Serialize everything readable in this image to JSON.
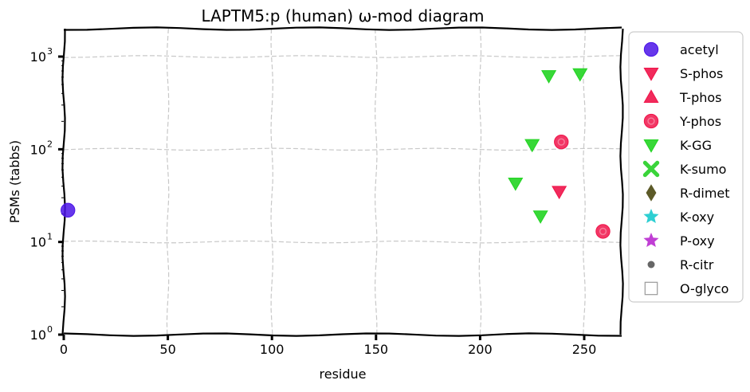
{
  "chart_data": {
    "type": "scatter",
    "title": "LAPTM5:p (human) ω-mod diagram",
    "xlabel": "residue",
    "ylabel": "PSMs (tabbs)",
    "xlim": [
      0,
      268
    ],
    "ylim": [
      1,
      2000
    ],
    "yscale": "log",
    "grid": true,
    "legend_position": "right outside",
    "x_ticks": [
      "0",
      "50",
      "100",
      "150",
      "200",
      "250"
    ],
    "x_tick_values": [
      0,
      50,
      100,
      150,
      200,
      250
    ],
    "y_ticks": [
      {
        "value": 1,
        "base": "10",
        "exp": "0"
      },
      {
        "value": 10,
        "base": "10",
        "exp": "1"
      },
      {
        "value": 100,
        "base": "10",
        "exp": "2"
      },
      {
        "value": 1000,
        "base": "10",
        "exp": "3"
      }
    ],
    "series": [
      {
        "name": "acetyl",
        "marker": "circle",
        "color": "#4b14e8",
        "points": [
          {
            "x": 2,
            "y": 22
          }
        ]
      },
      {
        "name": "S-phos",
        "marker": "triangle-down",
        "color": "#f0144a",
        "points": [
          {
            "x": 238,
            "y": 35
          }
        ]
      },
      {
        "name": "T-phos",
        "marker": "triangle-up",
        "color": "#f0144a",
        "points": []
      },
      {
        "name": "Y-phos",
        "marker": "circle-ring",
        "color": "#f0144a",
        "points": [
          {
            "x": 239,
            "y": 120
          },
          {
            "x": 259,
            "y": 13
          }
        ]
      },
      {
        "name": "K-GG",
        "marker": "triangle-down",
        "color": "#22d422",
        "points": [
          {
            "x": 217,
            "y": 43
          },
          {
            "x": 225,
            "y": 112
          },
          {
            "x": 229,
            "y": 19
          },
          {
            "x": 233,
            "y": 620
          },
          {
            "x": 248,
            "y": 650
          }
        ]
      },
      {
        "name": "K-sumo",
        "marker": "x-thick",
        "color": "#3ad43a",
        "points": []
      },
      {
        "name": "R-dimet",
        "marker": "diamond",
        "color": "#5c5a28",
        "points": []
      },
      {
        "name": "K-oxy",
        "marker": "star",
        "color": "#2ecfd2",
        "points": []
      },
      {
        "name": "P-oxy",
        "marker": "star",
        "color": "#c03ed4",
        "points": []
      },
      {
        "name": "R-citr",
        "marker": "small-circle",
        "color": "#666666",
        "points": []
      },
      {
        "name": "O-glyco",
        "marker": "square-open",
        "color": "#999999",
        "points": []
      }
    ]
  }
}
